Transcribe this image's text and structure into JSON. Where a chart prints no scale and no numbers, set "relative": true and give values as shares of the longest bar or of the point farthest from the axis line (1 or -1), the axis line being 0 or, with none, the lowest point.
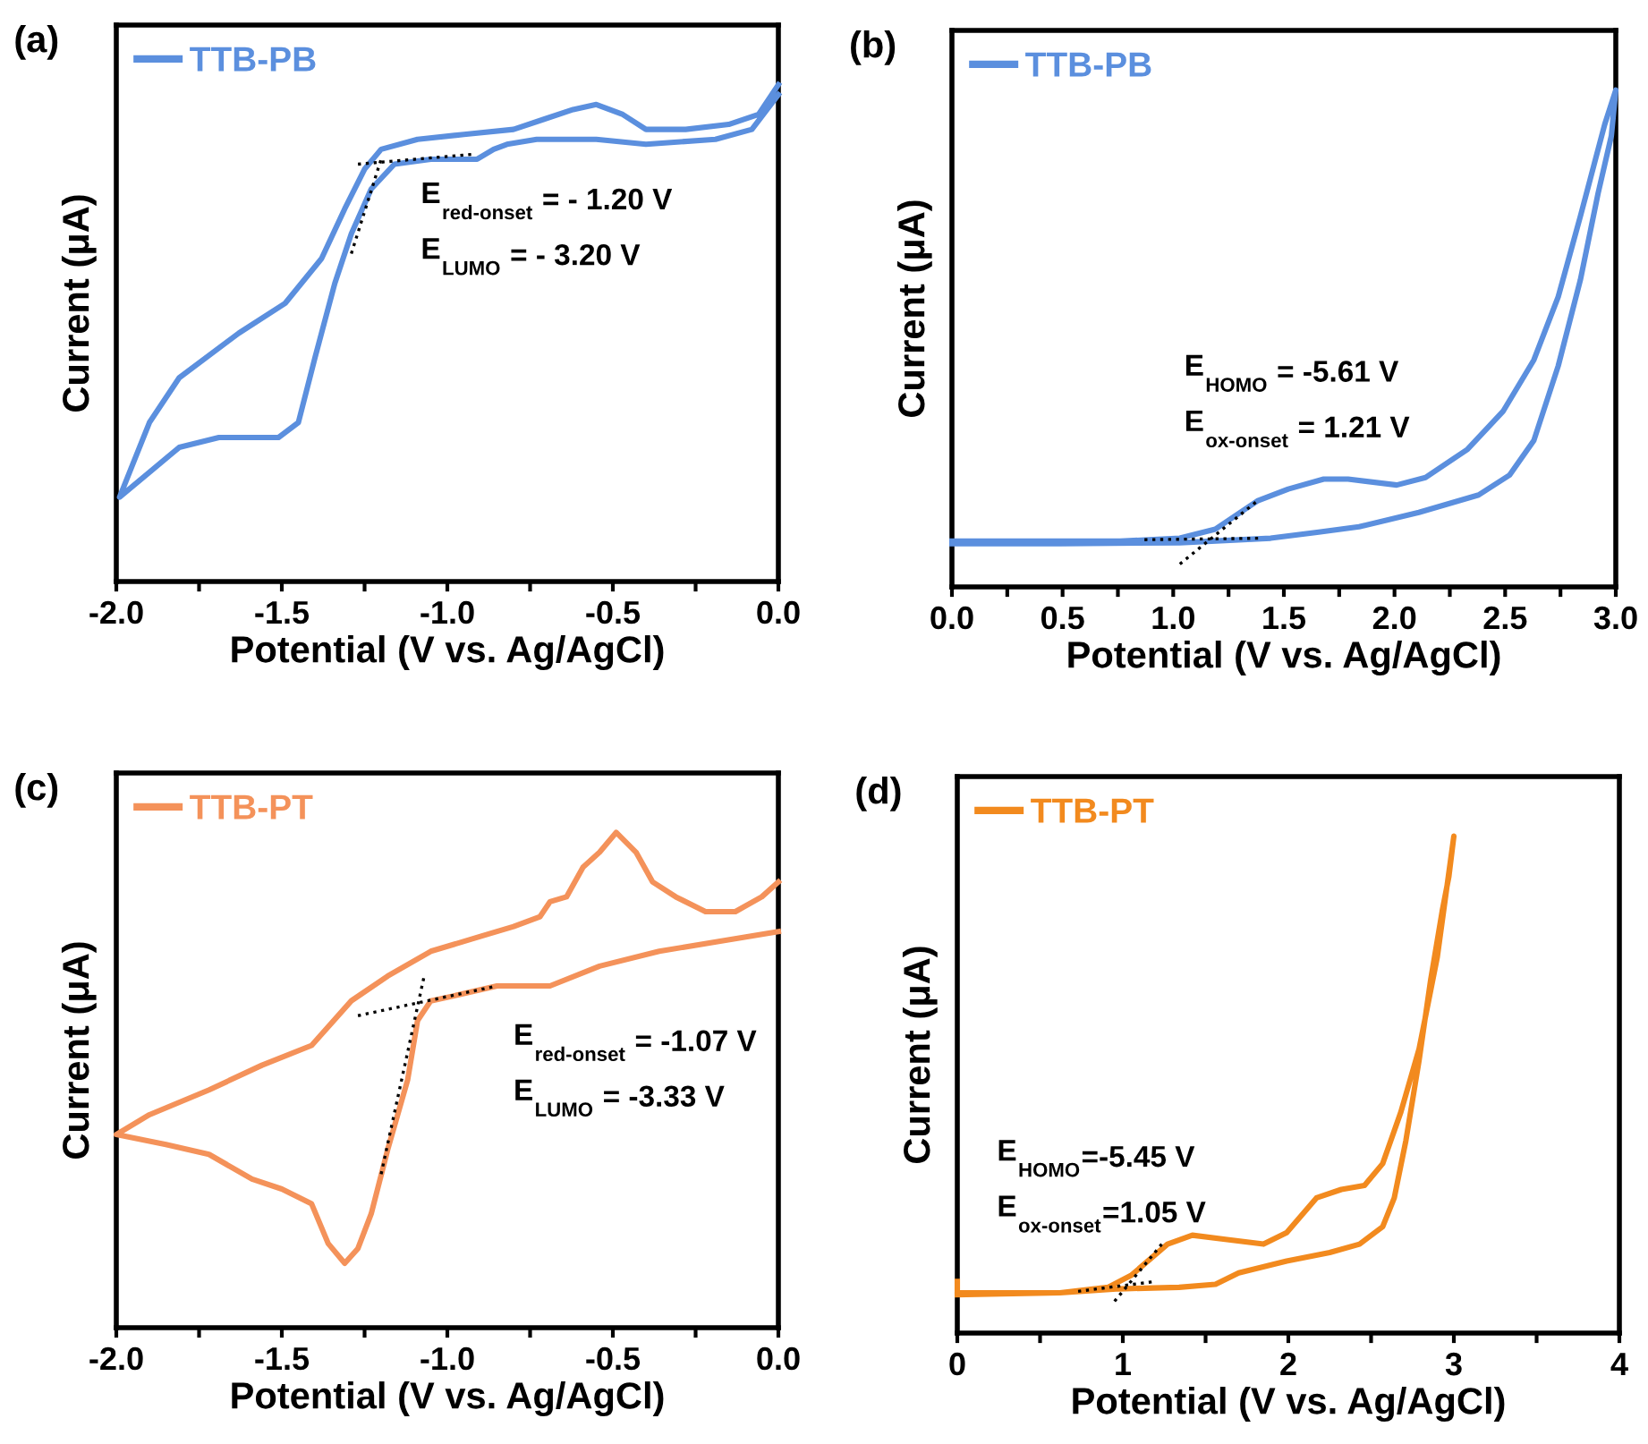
{
  "chart_data": [
    {
      "type": "line",
      "title": "(a)",
      "xlabel": "Potential (V vs. Ag/AgCl)",
      "ylabel": "Current (μA)",
      "relative": true,
      "legend": "top left",
      "tick_labels": "x",
      "xlim": [
        -2.0,
        0.0
      ],
      "xticks": [
        {
          "value": -2.0,
          "label": "-2.0"
        },
        {
          "value": -1.75,
          "label": null
        },
        {
          "value": -1.5,
          "label": "-1.5"
        },
        {
          "value": -1.25,
          "label": null
        },
        {
          "value": -1.0,
          "label": "-1.0"
        },
        {
          "value": -0.75,
          "label": null
        },
        {
          "value": -0.5,
          "label": "-0.5"
        },
        {
          "value": -0.25,
          "label": null
        },
        {
          "value": 0.0,
          "label": "0.0"
        }
      ],
      "annotations": [
        "E$_{red-onset}$ = - 1.20 V",
        "E$_{LUMO}$ = - 3.20 V"
      ],
      "series": [
        {
          "name": "TTB-PB",
          "color": "#5b8fde",
          "line_style": "solid",
          "x": [
            0.0,
            -0.06,
            -0.15,
            -0.28,
            -0.4,
            -0.47,
            -0.55,
            -0.62,
            -0.71,
            -0.8,
            -0.95,
            -1.09,
            -1.2,
            -1.25,
            -1.31,
            -1.38,
            -1.49,
            -1.63,
            -1.81,
            -1.9,
            -1.99,
            -1.9,
            -1.81,
            -1.69,
            -1.58,
            -1.51,
            -1.45,
            -1.4,
            -1.34,
            -1.29,
            -1.23,
            -1.16,
            -1.05,
            -0.91,
            -0.86,
            -0.82,
            -0.73,
            -0.55,
            -0.4,
            -0.19,
            -0.08,
            0.0
          ],
          "values": [
            1.0,
            0.94,
            0.92,
            0.91,
            0.91,
            0.94,
            0.96,
            0.95,
            0.93,
            0.91,
            0.9,
            0.89,
            0.87,
            0.83,
            0.75,
            0.65,
            0.56,
            0.5,
            0.41,
            0.32,
            0.17,
            0.22,
            0.27,
            0.29,
            0.29,
            0.29,
            0.32,
            0.45,
            0.6,
            0.7,
            0.79,
            0.84,
            0.85,
            0.85,
            0.87,
            0.88,
            0.89,
            0.89,
            0.88,
            0.89,
            0.91,
            0.98
          ]
        },
        {
          "color": "#000000",
          "line_style": "dotted",
          "x": [
            -1.27,
            -0.92
          ],
          "values": [
            0.84,
            0.86
          ]
        },
        {
          "color": "#000000",
          "line_style": "dotted",
          "x": [
            -1.29,
            -1.2
          ],
          "values": [
            0.66,
            0.85
          ]
        }
      ]
    },
    {
      "type": "line",
      "title": "(b)",
      "xlabel": "Potential (V vs. Ag/AgCl)",
      "ylabel": "Current (μA)",
      "relative": true,
      "legend": "top left",
      "tick_labels": "x",
      "xlim": [
        0.0,
        3.0
      ],
      "xticks": [
        {
          "value": 0.0,
          "label": "0.0"
        },
        {
          "value": 0.25,
          "label": null
        },
        {
          "value": 0.5,
          "label": "0.5"
        },
        {
          "value": 0.75,
          "label": null
        },
        {
          "value": 1.0,
          "label": "1.0"
        },
        {
          "value": 1.25,
          "label": null
        },
        {
          "value": 1.5,
          "label": "1.5"
        },
        {
          "value": 1.75,
          "label": null
        },
        {
          "value": 2.0,
          "label": "2.0"
        },
        {
          "value": 2.25,
          "label": null
        },
        {
          "value": 2.5,
          "label": "2.5"
        },
        {
          "value": 2.75,
          "label": null
        },
        {
          "value": 3.0,
          "label": "3.0"
        }
      ],
      "annotations": [
        "E$_{HOMO}$ = -5.61 V",
        "E$_{ox-onset}$ = 1.21 V"
      ],
      "series": [
        {
          "name": "TTB-PB",
          "color": "#5b8fde",
          "line_style": "solid",
          "x": [
            0.0,
            0.76,
            1.03,
            1.19,
            1.38,
            1.52,
            1.68,
            1.79,
            2.01,
            2.14,
            2.33,
            2.49,
            2.63,
            2.74,
            2.84,
            2.95,
            3.0,
            2.98,
            2.92,
            2.84,
            2.74,
            2.63,
            2.52,
            2.38,
            2.11,
            1.84,
            1.65,
            1.44,
            1.03,
            0.49,
            0.0
          ],
          "values": [
            0.092,
            0.092,
            0.098,
            0.116,
            0.173,
            0.197,
            0.217,
            0.217,
            0.205,
            0.22,
            0.277,
            0.353,
            0.457,
            0.584,
            0.746,
            0.931,
            1.0,
            0.908,
            0.792,
            0.618,
            0.445,
            0.295,
            0.225,
            0.185,
            0.15,
            0.121,
            0.11,
            0.098,
            0.089,
            0.087,
            0.087
          ]
        },
        {
          "color": "#000000",
          "line_style": "dotted",
          "x": [
            0.87,
            1.4
          ],
          "values": [
            0.095,
            0.098
          ]
        },
        {
          "color": "#000000",
          "line_style": "dotted",
          "x": [
            1.03,
            1.38
          ],
          "values": [
            0.046,
            0.173
          ]
        }
      ]
    },
    {
      "type": "line",
      "title": "(c)",
      "xlabel": "Potential (V vs. Ag/AgCl)",
      "ylabel": "Current (μA)",
      "relative": true,
      "legend": "top left",
      "tick_labels": "x",
      "xlim": [
        -2.0,
        0.0
      ],
      "xticks": [
        {
          "value": -2.0,
          "label": "-2.0"
        },
        {
          "value": -1.75,
          "label": null
        },
        {
          "value": -1.5,
          "label": "-1.5"
        },
        {
          "value": -1.25,
          "label": null
        },
        {
          "value": -1.0,
          "label": "-1.0"
        },
        {
          "value": -0.75,
          "label": null
        },
        {
          "value": -0.5,
          "label": "-0.5"
        },
        {
          "value": -0.25,
          "label": null
        },
        {
          "value": 0.0,
          "label": "0.0"
        }
      ],
      "annotations": [
        "E$_{red-onset}$ = -1.07 V",
        "E$_{LUMO}$ = -3.33 V"
      ],
      "series": [
        {
          "name": "TTB-PT",
          "color": "#f4925a",
          "line_style": "solid",
          "x": [
            0.0,
            -0.18,
            -0.36,
            -0.54,
            -0.69,
            -0.85,
            -0.98,
            -1.05,
            -1.09,
            -1.12,
            -1.18,
            -1.23,
            -1.27,
            -1.31,
            -1.36,
            -1.41,
            -1.5,
            -1.59,
            -1.72,
            -1.85,
            -2.0,
            -1.9,
            -1.72,
            -1.56,
            -1.41,
            -1.29,
            -1.18,
            -1.05,
            -0.9,
            -0.8,
            -0.72,
            -0.69,
            -0.64,
            -0.59,
            -0.54,
            -0.49,
            -0.43,
            -0.38,
            -0.31,
            -0.22,
            -0.13,
            -0.05,
            0.0
          ],
          "values": [
            0.8,
            0.78,
            0.76,
            0.73,
            0.69,
            0.69,
            0.67,
            0.66,
            0.62,
            0.5,
            0.36,
            0.23,
            0.16,
            0.13,
            0.17,
            0.25,
            0.28,
            0.3,
            0.35,
            0.37,
            0.39,
            0.43,
            0.48,
            0.53,
            0.57,
            0.66,
            0.71,
            0.76,
            0.79,
            0.81,
            0.83,
            0.86,
            0.87,
            0.93,
            0.96,
            1.0,
            0.96,
            0.9,
            0.87,
            0.84,
            0.84,
            0.87,
            0.9
          ]
        },
        {
          "color": "#000000",
          "line_style": "dotted",
          "x": [
            -1.27,
            -0.85
          ],
          "values": [
            0.63,
            0.69
          ]
        },
        {
          "color": "#000000",
          "line_style": "dotted",
          "x": [
            -1.2,
            -1.07
          ],
          "values": [
            0.31,
            0.71
          ]
        }
      ]
    },
    {
      "type": "line",
      "title": "(d)",
      "xlabel": "Potential (V vs. Ag/AgCl)",
      "ylabel": "Current (μA)",
      "relative": true,
      "legend": "top left",
      "tick_labels": "x",
      "xlim": [
        0,
        4
      ],
      "xticks": [
        0,
        {
          "value": 0.5,
          "label": null
        },
        1,
        {
          "value": 1.5,
          "label": null
        },
        2,
        {
          "value": 2.5,
          "label": null
        },
        3,
        {
          "value": 3.5,
          "label": null
        },
        4
      ],
      "annotations": [
        "E$_{HOMO}$=-5.45 V",
        "E$_{ox-onset}$=1.05 V"
      ],
      "series": [
        {
          "name": "TTB-PT",
          "color": "#f28a1e",
          "line_style": "solid",
          "x": [
            0.0,
            0.0,
            0.62,
            0.91,
            1.05,
            1.27,
            1.42,
            1.63,
            1.85,
            1.99,
            2.17,
            2.32,
            2.46,
            2.57,
            2.68,
            2.79,
            2.9,
            3.0,
            2.97,
            2.93,
            2.86,
            2.79,
            2.71,
            2.64,
            2.57,
            2.43,
            2.25,
            1.99,
            1.7,
            1.56,
            1.34,
            0.98,
            0.62,
            0.0
          ],
          "values": [
            0.104,
            0.081,
            0.081,
            0.092,
            0.116,
            0.179,
            0.197,
            0.188,
            0.179,
            0.202,
            0.272,
            0.289,
            0.297,
            0.341,
            0.445,
            0.572,
            0.757,
            1.0,
            0.919,
            0.85,
            0.711,
            0.549,
            0.387,
            0.272,
            0.214,
            0.179,
            0.162,
            0.145,
            0.121,
            0.098,
            0.092,
            0.089,
            0.081,
            0.077
          ]
        },
        {
          "color": "#000000",
          "line_style": "dotted",
          "x": [
            0.73,
            1.2
          ],
          "values": [
            0.084,
            0.104
          ]
        },
        {
          "color": "#000000",
          "line_style": "dotted",
          "x": [
            0.95,
            1.25
          ],
          "values": [
            0.064,
            0.185
          ]
        }
      ]
    }
  ]
}
